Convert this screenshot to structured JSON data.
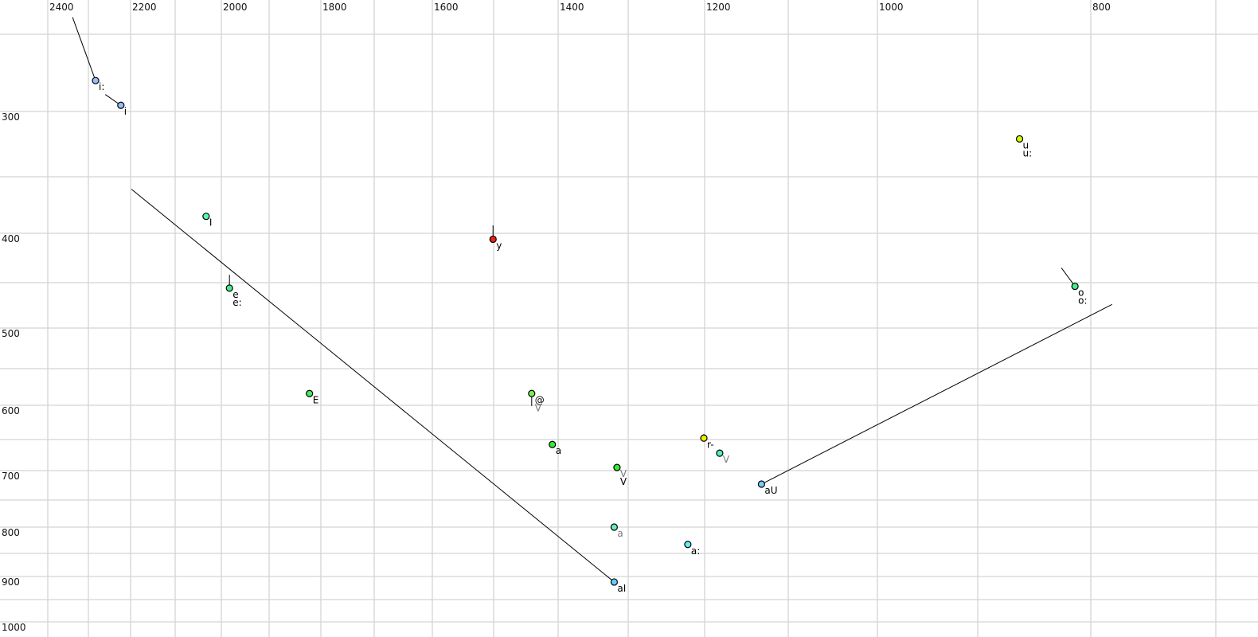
{
  "chart_data": {
    "type": "scatter",
    "x_axis": {
      "reversed": true,
      "range": [
        2400,
        700
      ],
      "tick_labels": [
        2400,
        2200,
        2000,
        1800,
        1600,
        1400,
        1200,
        1000,
        800
      ],
      "gridlines": [
        2400,
        2300,
        2200,
        2100,
        2000,
        1900,
        1800,
        1700,
        1600,
        1500,
        1400,
        1300,
        1200,
        1100,
        1000,
        900,
        800,
        700
      ],
      "position": "top"
    },
    "y_axis": {
      "reversed": false,
      "range": [
        250,
        1000
      ],
      "tick_labels": [
        300,
        400,
        500,
        600,
        700,
        800,
        900,
        1000
      ],
      "gridlines": [
        250,
        300,
        350,
        400,
        450,
        500,
        550,
        600,
        650,
        700,
        750,
        800,
        850,
        900,
        950,
        1000
      ],
      "position": "left"
    },
    "grid": true,
    "points": [
      {
        "labels": [
          {
            "text": "i:",
            "color": "#000000"
          }
        ],
        "x": 2283,
        "y": 280,
        "color": "#99bbff",
        "tail": [
          2339,
          239
        ]
      },
      {
        "labels": [
          {
            "text": "i",
            "color": "#000000"
          }
        ],
        "x": 2223,
        "y": 296,
        "color": "#99bbff",
        "tail": [
          2260,
          289
        ]
      },
      {
        "labels": [
          {
            "text": "I",
            "color": "#000000"
          }
        ],
        "x": 2033,
        "y": 385,
        "color": "#55ffaa"
      },
      {
        "labels": [
          {
            "text": "e",
            "color": "#000000"
          },
          {
            "text": "e:",
            "color": "#000000"
          }
        ],
        "x": 1983,
        "y": 456,
        "color": "#44ee88",
        "tail": [
          1983,
          442
        ]
      },
      {
        "labels": [
          {
            "text": "E",
            "color": "#000000"
          }
        ],
        "x": 1822,
        "y": 584,
        "color": "#44ee66"
      },
      {
        "labels": [
          {
            "text": "y",
            "color": "#000000"
          }
        ],
        "x": 1501,
        "y": 406,
        "color": "#ee2211",
        "tail": [
          1501,
          393
        ]
      },
      {
        "labels": [
          {
            "text": "@",
            "color": "#000000"
          },
          {
            "text": "V",
            "color": "#777788"
          }
        ],
        "x": 1441,
        "y": 584,
        "color": "#77ee55",
        "tail": [
          1441,
          601
        ]
      },
      {
        "labels": [
          {
            "text": "a",
            "color": "#000000"
          }
        ],
        "x": 1409,
        "y": 658,
        "color": "#33ee33"
      },
      {
        "labels": [
          {
            "text": "V",
            "color": "#777788"
          },
          {
            "text": "V",
            "color": "#000000"
          }
        ],
        "x": 1316,
        "y": 695,
        "color": "#33ee33"
      },
      {
        "labels": [
          {
            "text": "a",
            "color": "#777788"
          }
        ],
        "x": 1320,
        "y": 800,
        "color": "#66eebb"
      },
      {
        "labels": [
          {
            "text": "a:",
            "color": "#000000"
          }
        ],
        "x": 1222,
        "y": 833,
        "color": "#66eeee"
      },
      {
        "labels": [
          {
            "text": "aI",
            "color": "#000000"
          }
        ],
        "x": 1320,
        "y": 912,
        "color": "#66ccff",
        "tail": [
          2198,
          361
        ]
      },
      {
        "labels": [
          {
            "text": "r-",
            "color": "#000000"
          }
        ],
        "x": 1201,
        "y": 648,
        "color": "#eeee00",
        "tail": [
          1201,
          642
        ]
      },
      {
        "labels": [
          {
            "text": "V",
            "color": "#777788"
          }
        ],
        "x": 1182,
        "y": 672,
        "color": "#55eebb"
      },
      {
        "labels": [
          {
            "text": "aU",
            "color": "#000000"
          }
        ],
        "x": 1132,
        "y": 723,
        "color": "#77ccff",
        "tail": [
          783,
          474
        ]
      },
      {
        "labels": [
          {
            "text": "u",
            "color": "#000000"
          },
          {
            "text": "u:",
            "color": "#000000"
          }
        ],
        "x": 863,
        "y": 321,
        "color": "#ccff00"
      },
      {
        "labels": [
          {
            "text": "o",
            "color": "#000000"
          },
          {
            "text": "o:",
            "color": "#000000"
          }
        ],
        "x": 814,
        "y": 454,
        "color": "#44ee88",
        "tail": [
          826,
          435
        ]
      }
    ]
  }
}
